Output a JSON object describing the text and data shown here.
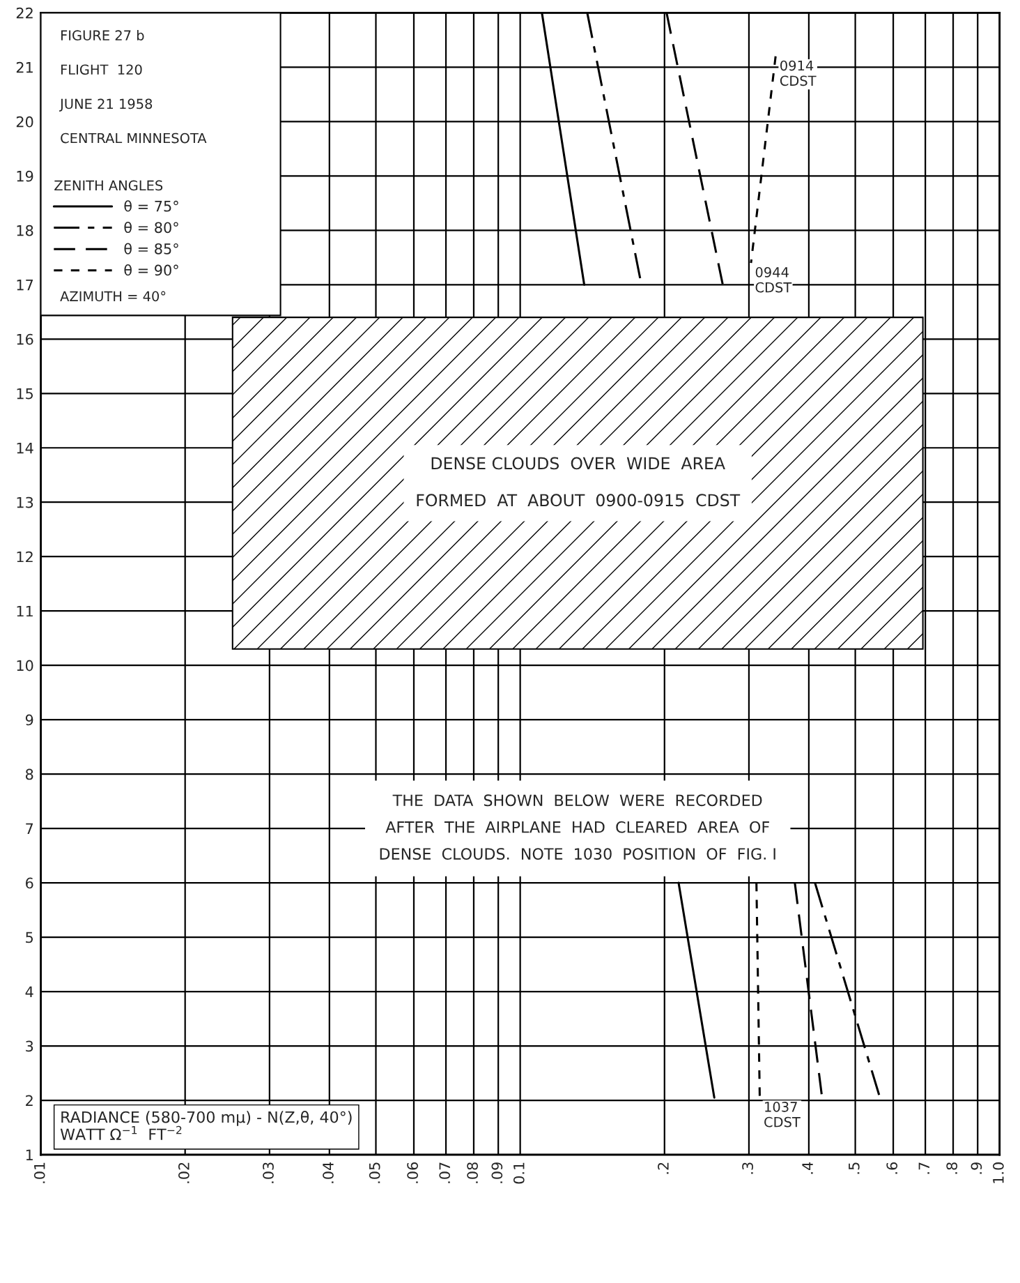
{
  "chart_data": {
    "type": "line",
    "title": "FIGURE 27 b",
    "xlabel": "RADIANCE (580-700 mμ) - N(Z,θ, 40°)\nWATT Ω$^{−1}$  FT$^{−2}$",
    "legend_title": "ZENITH ANGLES",
    "legend": "top left",
    "log": "x",
    "grid": true,
    "marker": "none",
    "xlim": [
      0.01,
      1.0
    ],
    "ylim": [
      1,
      22
    ],
    "xticks": [
      {
        "value": 0.01,
        "label": ".01"
      },
      {
        "value": 0.02,
        "label": ".02"
      },
      {
        "value": 0.03,
        "label": ".03"
      },
      {
        "value": 0.04,
        "label": ".04"
      },
      {
        "value": 0.05,
        "label": ".05"
      },
      {
        "value": 0.06,
        "label": ".06"
      },
      {
        "value": 0.07,
        "label": ".07"
      },
      {
        "value": 0.08,
        "label": ".08"
      },
      {
        "value": 0.09,
        "label": ".09"
      },
      {
        "value": 0.1,
        "label": "0.1"
      },
      {
        "value": 0.2,
        "label": ".2"
      },
      {
        "value": 0.3,
        "label": ".3"
      },
      {
        "value": 0.4,
        "label": ".4"
      },
      {
        "value": 0.5,
        "label": ".5"
      },
      {
        "value": 0.6,
        "label": ".6"
      },
      {
        "value": 0.7,
        "label": ".7"
      },
      {
        "value": 0.8,
        "label": ".8"
      },
      {
        "value": 0.9,
        "label": ".9"
      },
      {
        "value": 1.0,
        "label": "1.0"
      }
    ],
    "yticks": [
      1,
      2,
      3,
      4,
      5,
      6,
      7,
      8,
      9,
      10,
      11,
      12,
      13,
      14,
      15,
      16,
      17,
      18,
      19,
      20,
      21,
      22
    ],
    "series": [
      {
        "name": "θ = 75°",
        "color": "#000000",
        "line_style": "solid",
        "x": [
          0.111,
          0.136,
          null,
          0.214,
          0.254
        ],
        "values": [
          22,
          17,
          null,
          6,
          2.05
        ]
      },
      {
        "name": "θ = 80°",
        "color": "#000000",
        "line_style": "dashdot",
        "x": [
          0.138,
          0.179,
          null,
          0.412,
          0.565
        ],
        "values": [
          22,
          17,
          null,
          6,
          2
        ]
      },
      {
        "name": "θ = 85°",
        "color": "#000000",
        "line_style": "dashed",
        "x": [
          0.202,
          0.266,
          null,
          0.374,
          0.427
        ],
        "values": [
          22,
          16.9,
          null,
          6,
          2
        ]
      },
      {
        "name": "θ = 90°",
        "color": "#000000",
        "line_style": "dotted",
        "x": [
          0.341,
          0.303,
          null,
          0.311,
          0.316
        ],
        "values": [
          21.2,
          17.4,
          null,
          6,
          2.05
        ]
      }
    ],
    "bands": [
      {
        "axis": "y",
        "from": 10.3,
        "to": 16.4,
        "label": "DENSE CLOUDS  OVER  WIDE  AREA\n\nFORMED  AT  ABOUT  0900-0915  CDST"
      }
    ],
    "annotations": [
      "FLIGHT  120",
      "JUNE 21 1958",
      "CENTRAL MINNESOTA",
      "AZIMUTH = 40°",
      "THE  DATA  SHOWN  BELOW  WERE  RECORDED\nAFTER  THE  AIRPLANE  HAD  CLEARED  AREA  OF\nDENSE  CLOUDS.  NOTE  1030  POSITION  OF  FIG. I",
      {
        "text": "0914\nCDST",
        "x": 0.341,
        "y": 21.2
      },
      {
        "text": "0944\nCDST",
        "x": 0.303,
        "y": 17.4
      },
      {
        "text": "1037\nCDST",
        "x": 0.316,
        "y": 2.05
      }
    ]
  }
}
